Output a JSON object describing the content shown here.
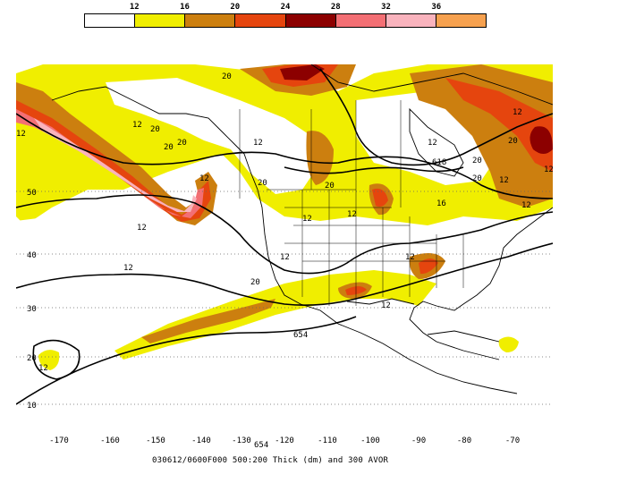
{
  "legend": {
    "labels": [
      "12",
      "16",
      "20",
      "24",
      "28",
      "32",
      "36"
    ],
    "colors": [
      "#ffffff",
      "#f0ee00",
      "#cc7f0f",
      "#e5450e",
      "#8c0000",
      "#f36f74",
      "#f9b3bd",
      "#f6a14f"
    ]
  },
  "map": {
    "latitude_labels": [
      "50",
      "40",
      "30",
      "20",
      "10"
    ],
    "longitude_labels": [
      "-170",
      "-160",
      "-150",
      "-140",
      "-130",
      "-120",
      "-110",
      "-100",
      "-90",
      "-80",
      "-70"
    ],
    "contour_labels": [
      "20",
      "20",
      "12",
      "12",
      "20",
      "20",
      "12",
      "12",
      "20",
      "12",
      "12",
      "12",
      "12",
      "20",
      "12",
      "20",
      "20",
      "20",
      "12",
      "12",
      "12",
      "12",
      "16",
      "12",
      "12",
      "20",
      "12",
      "12",
      "618",
      "654",
      "654"
    ],
    "colors": {
      "land_outline": "#000000",
      "grid": "#666666",
      "height_contour": "#000000"
    }
  },
  "caption": "030612/0600F000 500:200 Thick (dm) and 300 AVOR"
}
